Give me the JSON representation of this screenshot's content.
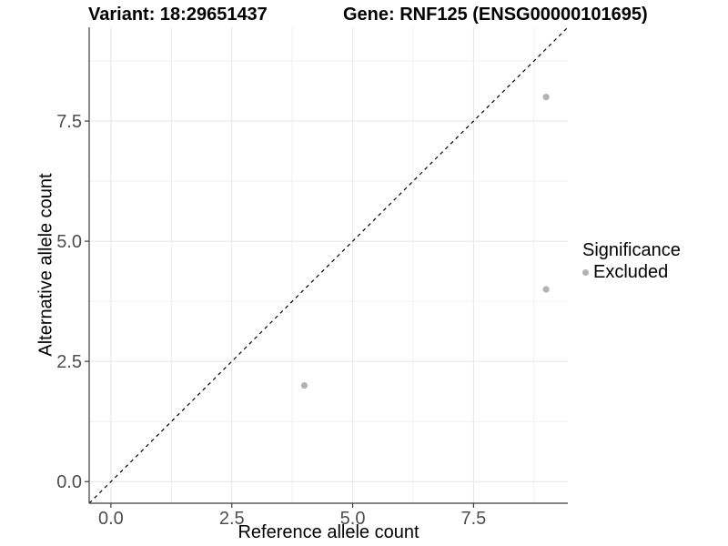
{
  "chart_data": {
    "type": "scatter",
    "titles": {
      "left": "Variant: 18:29651437",
      "right": "Gene: RNF125 (ENSG00000101695)"
    },
    "xlabel": "Reference allele count",
    "ylabel": "Alternative allele count",
    "xlim": [
      -0.45,
      9.45
    ],
    "ylim": [
      -0.45,
      9.45
    ],
    "x_ticks": [
      0.0,
      2.5,
      5.0,
      7.5
    ],
    "y_ticks": [
      0.0,
      2.5,
      5.0,
      7.5
    ],
    "x_minor_ticks": [
      1.25,
      3.75,
      6.25,
      8.75
    ],
    "y_minor_ticks": [
      1.25,
      3.75,
      6.25,
      8.75
    ],
    "tick_decimals": 1,
    "grid": true,
    "identity_line": {
      "show": true,
      "style": "dashed",
      "color": "#000000"
    },
    "series": [
      {
        "name": "Excluded",
        "color": "#b2b2b2",
        "points": [
          {
            "x": 4,
            "y": 2
          },
          {
            "x": 9,
            "y": 4
          },
          {
            "x": 9,
            "y": 8
          }
        ]
      }
    ],
    "legend": {
      "title": "Significance",
      "position": "right",
      "entries": [
        {
          "label": "Excluded",
          "color": "#b2b2b2"
        }
      ]
    },
    "colors": {
      "axis_line": "#3c3c3c",
      "tick_label": "#4d4d4d",
      "grid_major": "#e6e6e6",
      "grid_minor": "#f0f0f0",
      "background": "#ffffff"
    }
  }
}
